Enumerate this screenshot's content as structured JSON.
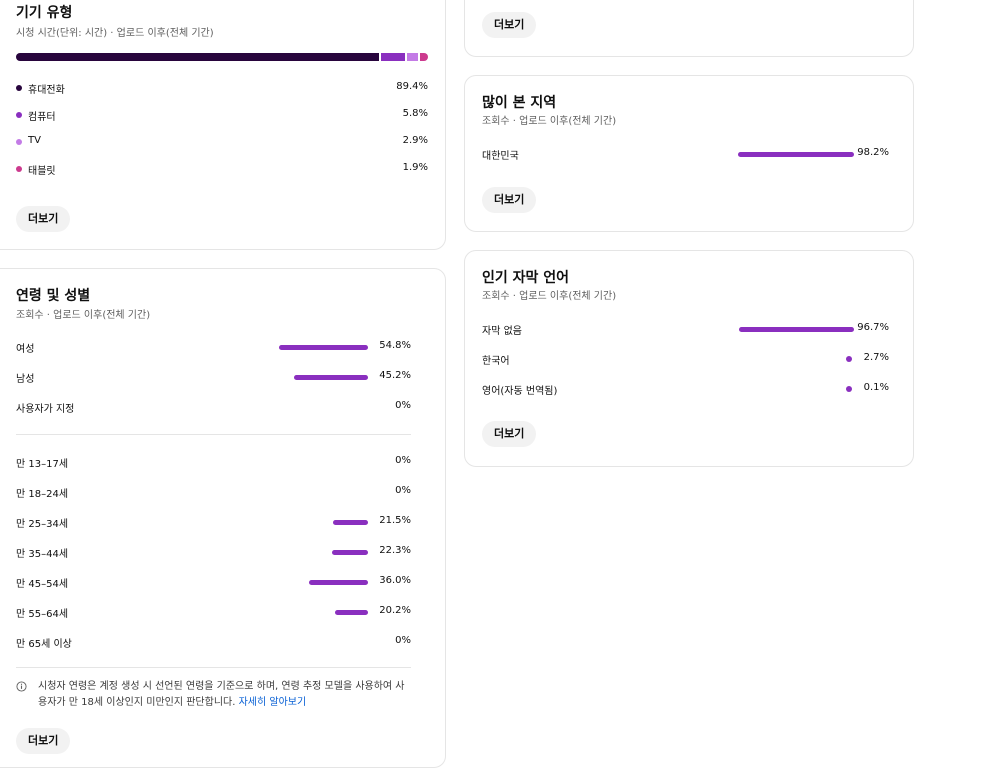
{
  "device": {
    "title": "기기 유형",
    "subtitle": "시청 시간(단위: 시간) · 업로드 이후(전체 기간)",
    "items": [
      {
        "label": "휴대전화",
        "value": "89.4%",
        "pct": 89.4,
        "color": "#28053d"
      },
      {
        "label": "컴퓨터",
        "value": "5.8%",
        "pct": 5.8,
        "color": "#8a2fbf"
      },
      {
        "label": "TV",
        "value": "2.9%",
        "pct": 2.9,
        "color": "#c37be6"
      },
      {
        "label": "태블릿",
        "value": "1.9%",
        "pct": 1.9,
        "color": "#cc3a8e"
      }
    ],
    "more_label": "더보기"
  },
  "top_card": {
    "more_label": "더보기"
  },
  "geo": {
    "title": "많이 본 지역",
    "subtitle": "조회수 · 업로드 이후(전체 기간)",
    "items": [
      {
        "label": "대한민국",
        "value": "98.2%",
        "pct": 98.2
      }
    ],
    "more_label": "더보기"
  },
  "subtitles": {
    "title": "인기 자막 언어",
    "subtitle": "조회수 · 업로드 이후(전체 기간)",
    "items": [
      {
        "label": "자막 없음",
        "value": "96.7%",
        "pct": 96.7
      },
      {
        "label": "한국어",
        "value": "2.7%",
        "pct": 2.7
      },
      {
        "label": "영어(자동 번역됨)",
        "value": "0.1%",
        "pct": 0.1
      }
    ],
    "more_label": "더보기"
  },
  "age_gender": {
    "title": "연령 및 성별",
    "subtitle": "조회수 · 업로드 이후(전체 기간)",
    "gender": [
      {
        "label": "여성",
        "value": "54.8%",
        "pct": 54.8
      },
      {
        "label": "남성",
        "value": "45.2%",
        "pct": 45.2
      },
      {
        "label": "사용자가 지정",
        "value": "0%",
        "pct": 0
      }
    ],
    "ages": [
      {
        "label": "만 13–17세",
        "value": "0%",
        "pct": 0
      },
      {
        "label": "만 18–24세",
        "value": "0%",
        "pct": 0
      },
      {
        "label": "만 25–34세",
        "value": "21.5%",
        "pct": 21.5
      },
      {
        "label": "만 35–44세",
        "value": "22.3%",
        "pct": 22.3
      },
      {
        "label": "만 45–54세",
        "value": "36.0%",
        "pct": 36.0
      },
      {
        "label": "만 55–64세",
        "value": "20.2%",
        "pct": 20.2
      },
      {
        "label": "만 65세 이상",
        "value": "0%",
        "pct": 0
      }
    ],
    "note": "시청자 연령은 계정 생성 시 선언된 연령을 기준으로 하며, 연령 추정 모델을 사용하여 사용자가 만 18세 이상인지 미만인지 판단합니다.",
    "note_link": "자세히 알아보기",
    "more_label": "더보기"
  },
  "colors": {
    "accent": "#8a2fbf",
    "button_bg": "#f2f2f2",
    "border": "#e5e5e5",
    "link": "#065fd4"
  }
}
